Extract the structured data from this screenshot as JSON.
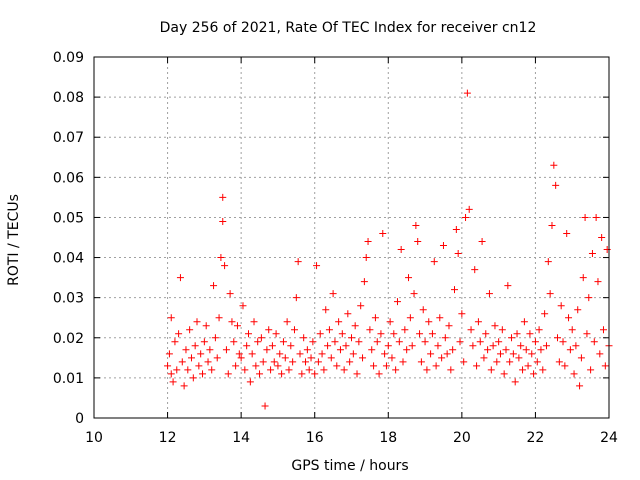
{
  "chart_data": {
    "type": "scatter",
    "title": "Day 256 of 2021, Rate Of TEC Index for receiver cn12",
    "xlabel": "GPS time / hours",
    "ylabel": "ROTI / TECUs",
    "xlim": [
      10,
      24
    ],
    "ylim": [
      0,
      0.09
    ],
    "xticks": [
      10,
      12,
      14,
      16,
      18,
      20,
      22,
      24
    ],
    "yticks": [
      0,
      0.01,
      0.02,
      0.03,
      0.04,
      0.05,
      0.06,
      0.07,
      0.08,
      0.09
    ],
    "xtick_labels": [
      "10",
      "12",
      "14",
      "16",
      "18",
      "20",
      "22",
      "24"
    ],
    "ytick_labels": [
      "0",
      "0.01",
      "0.02",
      "0.03",
      "0.04",
      "0.05",
      "0.06",
      "0.07",
      "0.08",
      "0.09"
    ],
    "grid": true,
    "marker": "+",
    "color": "#ff0000",
    "series": [
      {
        "name": "ROTI",
        "points": [
          [
            12.0,
            0.013
          ],
          [
            12.05,
            0.016
          ],
          [
            12.1,
            0.011
          ],
          [
            12.1,
            0.025
          ],
          [
            12.15,
            0.009
          ],
          [
            12.2,
            0.019
          ],
          [
            12.25,
            0.012
          ],
          [
            12.3,
            0.021
          ],
          [
            12.35,
            0.035
          ],
          [
            12.4,
            0.014
          ],
          [
            12.45,
            0.008
          ],
          [
            12.5,
            0.017
          ],
          [
            12.55,
            0.012
          ],
          [
            12.6,
            0.022
          ],
          [
            12.65,
            0.015
          ],
          [
            12.7,
            0.01
          ],
          [
            12.75,
            0.018
          ],
          [
            12.8,
            0.024
          ],
          [
            12.85,
            0.013
          ],
          [
            12.9,
            0.016
          ],
          [
            12.95,
            0.011
          ],
          [
            13.0,
            0.019
          ],
          [
            13.05,
            0.023
          ],
          [
            13.1,
            0.014
          ],
          [
            13.15,
            0.017
          ],
          [
            13.2,
            0.012
          ],
          [
            13.25,
            0.033
          ],
          [
            13.3,
            0.02
          ],
          [
            13.35,
            0.015
          ],
          [
            13.4,
            0.025
          ],
          [
            13.45,
            0.04
          ],
          [
            13.5,
            0.055
          ],
          [
            13.5,
            0.049
          ],
          [
            13.55,
            0.038
          ],
          [
            13.6,
            0.017
          ],
          [
            13.65,
            0.011
          ],
          [
            13.7,
            0.031
          ],
          [
            13.75,
            0.024
          ],
          [
            13.8,
            0.019
          ],
          [
            13.85,
            0.013
          ],
          [
            13.9,
            0.023
          ],
          [
            13.95,
            0.016
          ],
          [
            14.0,
            0.015
          ],
          [
            14.05,
            0.028
          ],
          [
            14.1,
            0.012
          ],
          [
            14.15,
            0.018
          ],
          [
            14.2,
            0.021
          ],
          [
            14.25,
            0.009
          ],
          [
            14.3,
            0.016
          ],
          [
            14.35,
            0.024
          ],
          [
            14.4,
            0.013
          ],
          [
            14.45,
            0.019
          ],
          [
            14.5,
            0.011
          ],
          [
            14.55,
            0.02
          ],
          [
            14.6,
            0.014
          ],
          [
            14.65,
            0.003
          ],
          [
            14.7,
            0.017
          ],
          [
            14.75,
            0.022
          ],
          [
            14.8,
            0.012
          ],
          [
            14.85,
            0.018
          ],
          [
            14.9,
            0.014
          ],
          [
            14.95,
            0.021
          ],
          [
            15.0,
            0.013
          ],
          [
            15.05,
            0.016
          ],
          [
            15.1,
            0.011
          ],
          [
            15.15,
            0.019
          ],
          [
            15.2,
            0.015
          ],
          [
            15.25,
            0.024
          ],
          [
            15.3,
            0.012
          ],
          [
            15.35,
            0.018
          ],
          [
            15.4,
            0.014
          ],
          [
            15.45,
            0.022
          ],
          [
            15.5,
            0.03
          ],
          [
            15.55,
            0.039
          ],
          [
            15.6,
            0.016
          ],
          [
            15.65,
            0.011
          ],
          [
            15.7,
            0.02
          ],
          [
            15.75,
            0.014
          ],
          [
            15.8,
            0.017
          ],
          [
            15.85,
            0.012
          ],
          [
            15.9,
            0.015
          ],
          [
            15.95,
            0.019
          ],
          [
            16.0,
            0.011
          ],
          [
            16.05,
            0.038
          ],
          [
            16.1,
            0.014
          ],
          [
            16.15,
            0.021
          ],
          [
            16.2,
            0.016
          ],
          [
            16.25,
            0.012
          ],
          [
            16.3,
            0.027
          ],
          [
            16.35,
            0.018
          ],
          [
            16.4,
            0.022
          ],
          [
            16.45,
            0.015
          ],
          [
            16.5,
            0.031
          ],
          [
            16.55,
            0.019
          ],
          [
            16.6,
            0.013
          ],
          [
            16.65,
            0.024
          ],
          [
            16.7,
            0.017
          ],
          [
            16.75,
            0.021
          ],
          [
            16.8,
            0.012
          ],
          [
            16.85,
            0.018
          ],
          [
            16.9,
            0.026
          ],
          [
            16.95,
            0.014
          ],
          [
            17.0,
            0.02
          ],
          [
            17.05,
            0.016
          ],
          [
            17.1,
            0.023
          ],
          [
            17.15,
            0.011
          ],
          [
            17.2,
            0.019
          ],
          [
            17.25,
            0.028
          ],
          [
            17.3,
            0.015
          ],
          [
            17.35,
            0.034
          ],
          [
            17.4,
            0.04
          ],
          [
            17.45,
            0.044
          ],
          [
            17.5,
            0.022
          ],
          [
            17.55,
            0.017
          ],
          [
            17.6,
            0.013
          ],
          [
            17.65,
            0.025
          ],
          [
            17.7,
            0.019
          ],
          [
            17.75,
            0.011
          ],
          [
            17.8,
            0.021
          ],
          [
            17.85,
            0.046
          ],
          [
            17.9,
            0.016
          ],
          [
            17.95,
            0.013
          ],
          [
            18.0,
            0.018
          ],
          [
            18.05,
            0.024
          ],
          [
            18.1,
            0.015
          ],
          [
            18.15,
            0.021
          ],
          [
            18.2,
            0.012
          ],
          [
            18.25,
            0.029
          ],
          [
            18.3,
            0.019
          ],
          [
            18.35,
            0.042
          ],
          [
            18.4,
            0.014
          ],
          [
            18.45,
            0.022
          ],
          [
            18.5,
            0.017
          ],
          [
            18.55,
            0.035
          ],
          [
            18.6,
            0.025
          ],
          [
            18.65,
            0.018
          ],
          [
            18.7,
            0.031
          ],
          [
            18.75,
            0.048
          ],
          [
            18.8,
            0.044
          ],
          [
            18.85,
            0.021
          ],
          [
            18.9,
            0.014
          ],
          [
            18.95,
            0.027
          ],
          [
            19.0,
            0.019
          ],
          [
            19.05,
            0.012
          ],
          [
            19.1,
            0.024
          ],
          [
            19.15,
            0.016
          ],
          [
            19.2,
            0.021
          ],
          [
            19.25,
            0.039
          ],
          [
            19.3,
            0.013
          ],
          [
            19.35,
            0.018
          ],
          [
            19.4,
            0.025
          ],
          [
            19.45,
            0.015
          ],
          [
            19.5,
            0.043
          ],
          [
            19.55,
            0.02
          ],
          [
            19.6,
            0.016
          ],
          [
            19.65,
            0.023
          ],
          [
            19.7,
            0.012
          ],
          [
            19.75,
            0.017
          ],
          [
            19.8,
            0.032
          ],
          [
            19.85,
            0.047
          ],
          [
            19.9,
            0.041
          ],
          [
            19.95,
            0.019
          ],
          [
            20.0,
            0.026
          ],
          [
            20.05,
            0.014
          ],
          [
            20.1,
            0.05
          ],
          [
            20.15,
            0.081
          ],
          [
            20.2,
            0.052
          ],
          [
            20.25,
            0.022
          ],
          [
            20.3,
            0.018
          ],
          [
            20.35,
            0.037
          ],
          [
            20.4,
            0.013
          ],
          [
            20.45,
            0.024
          ],
          [
            20.5,
            0.019
          ],
          [
            20.55,
            0.044
          ],
          [
            20.6,
            0.015
          ],
          [
            20.65,
            0.021
          ],
          [
            20.7,
            0.017
          ],
          [
            20.75,
            0.031
          ],
          [
            20.8,
            0.012
          ],
          [
            20.85,
            0.018
          ],
          [
            20.9,
            0.023
          ],
          [
            20.95,
            0.014
          ],
          [
            21.0,
            0.019
          ],
          [
            21.05,
            0.016
          ],
          [
            21.1,
            0.022
          ],
          [
            21.15,
            0.011
          ],
          [
            21.2,
            0.017
          ],
          [
            21.25,
            0.033
          ],
          [
            21.3,
            0.014
          ],
          [
            21.35,
            0.02
          ],
          [
            21.4,
            0.016
          ],
          [
            21.45,
            0.009
          ],
          [
            21.5,
            0.021
          ],
          [
            21.55,
            0.015
          ],
          [
            21.6,
            0.018
          ],
          [
            21.65,
            0.012
          ],
          [
            21.7,
            0.024
          ],
          [
            21.75,
            0.017
          ],
          [
            21.8,
            0.013
          ],
          [
            21.85,
            0.021
          ],
          [
            21.9,
            0.016
          ],
          [
            21.95,
            0.011
          ],
          [
            22.0,
            0.019
          ],
          [
            22.05,
            0.014
          ],
          [
            22.1,
            0.022
          ],
          [
            22.15,
            0.017
          ],
          [
            22.2,
            0.012
          ],
          [
            22.25,
            0.026
          ],
          [
            22.3,
            0.018
          ],
          [
            22.35,
            0.039
          ],
          [
            22.4,
            0.031
          ],
          [
            22.45,
            0.048
          ],
          [
            22.5,
            0.063
          ],
          [
            22.55,
            0.058
          ],
          [
            22.6,
            0.02
          ],
          [
            22.65,
            0.014
          ],
          [
            22.7,
            0.028
          ],
          [
            22.75,
            0.019
          ],
          [
            22.8,
            0.013
          ],
          [
            22.85,
            0.046
          ],
          [
            22.9,
            0.025
          ],
          [
            22.95,
            0.017
          ],
          [
            23.0,
            0.022
          ],
          [
            23.05,
            0.011
          ],
          [
            23.1,
            0.018
          ],
          [
            23.15,
            0.027
          ],
          [
            23.2,
            0.008
          ],
          [
            23.25,
            0.015
          ],
          [
            23.3,
            0.035
          ],
          [
            23.35,
            0.05
          ],
          [
            23.4,
            0.021
          ],
          [
            23.45,
            0.03
          ],
          [
            23.5,
            0.012
          ],
          [
            23.55,
            0.041
          ],
          [
            23.6,
            0.019
          ],
          [
            23.65,
            0.05
          ],
          [
            23.7,
            0.034
          ],
          [
            23.75,
            0.016
          ],
          [
            23.8,
            0.045
          ],
          [
            23.85,
            0.022
          ],
          [
            23.9,
            0.013
          ],
          [
            23.95,
            0.042
          ],
          [
            24.0,
            0.018
          ]
        ]
      }
    ]
  }
}
